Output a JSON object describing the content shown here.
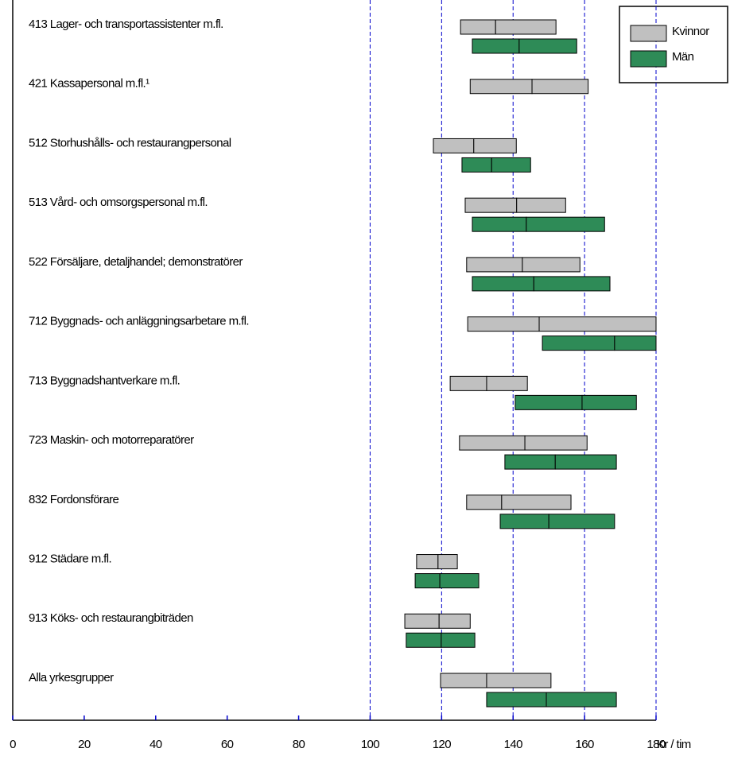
{
  "chart_data": {
    "type": "range-box",
    "categories": [
      "413 Lager- och transportassistenter m.fl.",
      "421 Kassapersonal m.fl.¹",
      "512 Storhushålls- och restaurangpersonal",
      "513 Vård- och omsorgspersonal m.fl.",
      "522 Försäljare, detaljhandel; demonstratörer",
      "712 Byggnads- och anläggningsarbetare m.fl.",
      "713 Byggnadshantverkare m.fl.",
      "723 Maskin- och motorreparatörer",
      "832 Fordonsförare",
      "912 Städare m.fl.",
      "913 Köks- och restaurangbiträden",
      "Alla yrkesgrupper"
    ],
    "series": [
      {
        "name": "Kvinnor",
        "color": "#c0c0c0",
        "q1": [
          125.3,
          128,
          117.7,
          126.6,
          127,
          127.3,
          122.4,
          125,
          127,
          113,
          109.7,
          119.7
        ],
        "median": [
          135.1,
          145.3,
          129,
          141,
          142.6,
          147.3,
          132.6,
          143.3,
          136.8,
          119,
          119.3,
          132.6
        ],
        "q3": [
          152,
          161,
          140.9,
          154.7,
          158.7,
          180,
          144,
          160.7,
          156.2,
          124.4,
          128,
          150.6
        ]
      },
      {
        "name": "Män",
        "color": "#2e8b57",
        "q1": [
          128.6,
          null,
          125.7,
          128.6,
          128.6,
          148.2,
          140.6,
          137.7,
          136.4,
          112.6,
          110.1,
          132.6
        ],
        "median": [
          141.7,
          null,
          134,
          143.7,
          145.8,
          168.4,
          159.3,
          151.8,
          150,
          119.5,
          119.9,
          149.3
        ],
        "q3": [
          157.8,
          null,
          144.9,
          165.6,
          167.1,
          180,
          174.5,
          168.9,
          168.4,
          130.4,
          129.3,
          168.9
        ]
      }
    ],
    "x_label": "Kr / tim",
    "xlim": [
      0,
      180
    ],
    "xticks": [
      0,
      20,
      40,
      60,
      80,
      100,
      120,
      140,
      160,
      180
    ],
    "gridlines": [
      100,
      120,
      140,
      160,
      180
    ]
  }
}
